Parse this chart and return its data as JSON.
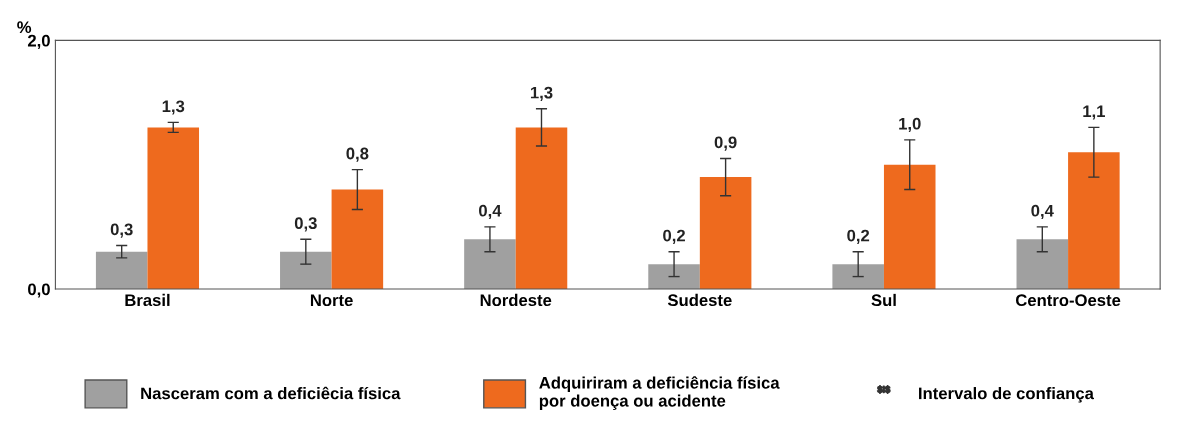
{
  "chart_data": {
    "type": "bar",
    "ylabel": "%",
    "categories": [
      "Brasil",
      "Norte",
      "Nordeste",
      "Sudeste",
      "Sul",
      "Centro-Oeste"
    ],
    "series": [
      {
        "name": "Nasceram com a deficiêcia física",
        "color": "#a0a0a0",
        "values": [
          0.3,
          0.3,
          0.4,
          0.2,
          0.2,
          0.4
        ],
        "errors": [
          0.05,
          0.1,
          0.1,
          0.1,
          0.1,
          0.1
        ],
        "value_labels": [
          "0,3",
          "0,3",
          "0,4",
          "0,2",
          "0,2",
          "0,4"
        ]
      },
      {
        "name": "Adquiriram a deficiência física\npor doença ou acidente",
        "color": "#ee6a1e",
        "values": [
          1.3,
          0.8,
          1.3,
          0.9,
          1.0,
          1.1
        ],
        "errors": [
          0.04,
          0.16,
          0.15,
          0.15,
          0.2,
          0.2
        ],
        "value_labels": [
          "1,3",
          "0,8",
          "1,3",
          "0,9",
          "1,0",
          "1,1"
        ]
      }
    ],
    "ylim": [
      0,
      2
    ],
    "yticks": [
      {
        "value": 0,
        "label": "0,0"
      },
      {
        "value": 2,
        "label": "2,0"
      }
    ],
    "grid": false,
    "legend": "bottom",
    "annotations": [
      "Intervalo de confiança"
    ]
  }
}
